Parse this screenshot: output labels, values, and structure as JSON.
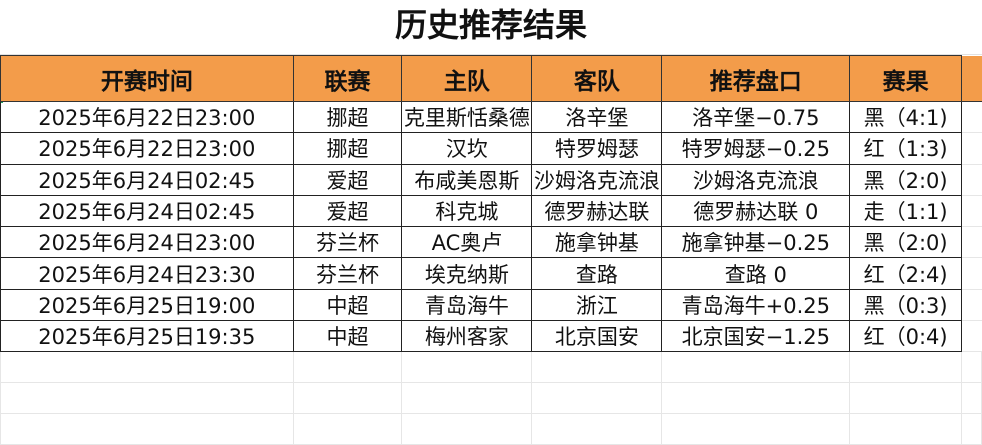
{
  "title": "历史推荐结果",
  "headers": [
    "开赛时间",
    "联赛",
    "主队",
    "客队",
    "推荐盘口",
    "赛果"
  ],
  "rows": [
    {
      "time": "2025年6月22日23:00",
      "league": "挪超",
      "home": "克里斯恬桑德",
      "away": "洛辛堡",
      "pick": "洛辛堡−0.75",
      "result": "黑（4:1)",
      "result_type": "black"
    },
    {
      "time": "2025年6月22日23:00",
      "league": "挪超",
      "home": "汉坎",
      "away": "特罗姆瑟",
      "pick": "特罗姆瑟−0.25",
      "result": "红（1:3)",
      "result_type": "red"
    },
    {
      "time": "2025年6月24日02:45",
      "league": "爱超",
      "home": "布咸美恩斯",
      "away": "沙姆洛克流浪",
      "pick": "沙姆洛克流浪",
      "result": "黑（2:0)",
      "result_type": "black"
    },
    {
      "time": "2025年6月24日02:45",
      "league": "爱超",
      "home": "科克城",
      "away": "德罗赫达联",
      "pick": "德罗赫达联 0",
      "result": "走（1:1)",
      "result_type": "orange"
    },
    {
      "time": "2025年6月24日23:00",
      "league": "芬兰杯",
      "home": "AC奥卢",
      "away": "施拿钟基",
      "pick": "施拿钟基−0.25",
      "result": "黑（2:0)",
      "result_type": "black"
    },
    {
      "time": "2025年6月24日23:30",
      "league": "芬兰杯",
      "home": "埃克纳斯",
      "away": "查路",
      "pick": "查路 0",
      "result": "红（2:4)",
      "result_type": "red"
    },
    {
      "time": "2025年6月25日19:00",
      "league": "中超",
      "home": "青岛海牛",
      "away": "浙江",
      "pick": "青岛海牛+0.25",
      "result": "黑（0:3)",
      "result_type": "black"
    },
    {
      "time": "2025年6月25日19:35",
      "league": "中超",
      "home": "梅州客家",
      "away": "北京国安",
      "pick": "北京国安−1.25",
      "result": "红（0:4)",
      "result_type": "red"
    }
  ],
  "colors": {
    "header_bg": "#f39c4a",
    "red": "#c0302a",
    "orange": "#e8862a",
    "black": "#111111"
  }
}
